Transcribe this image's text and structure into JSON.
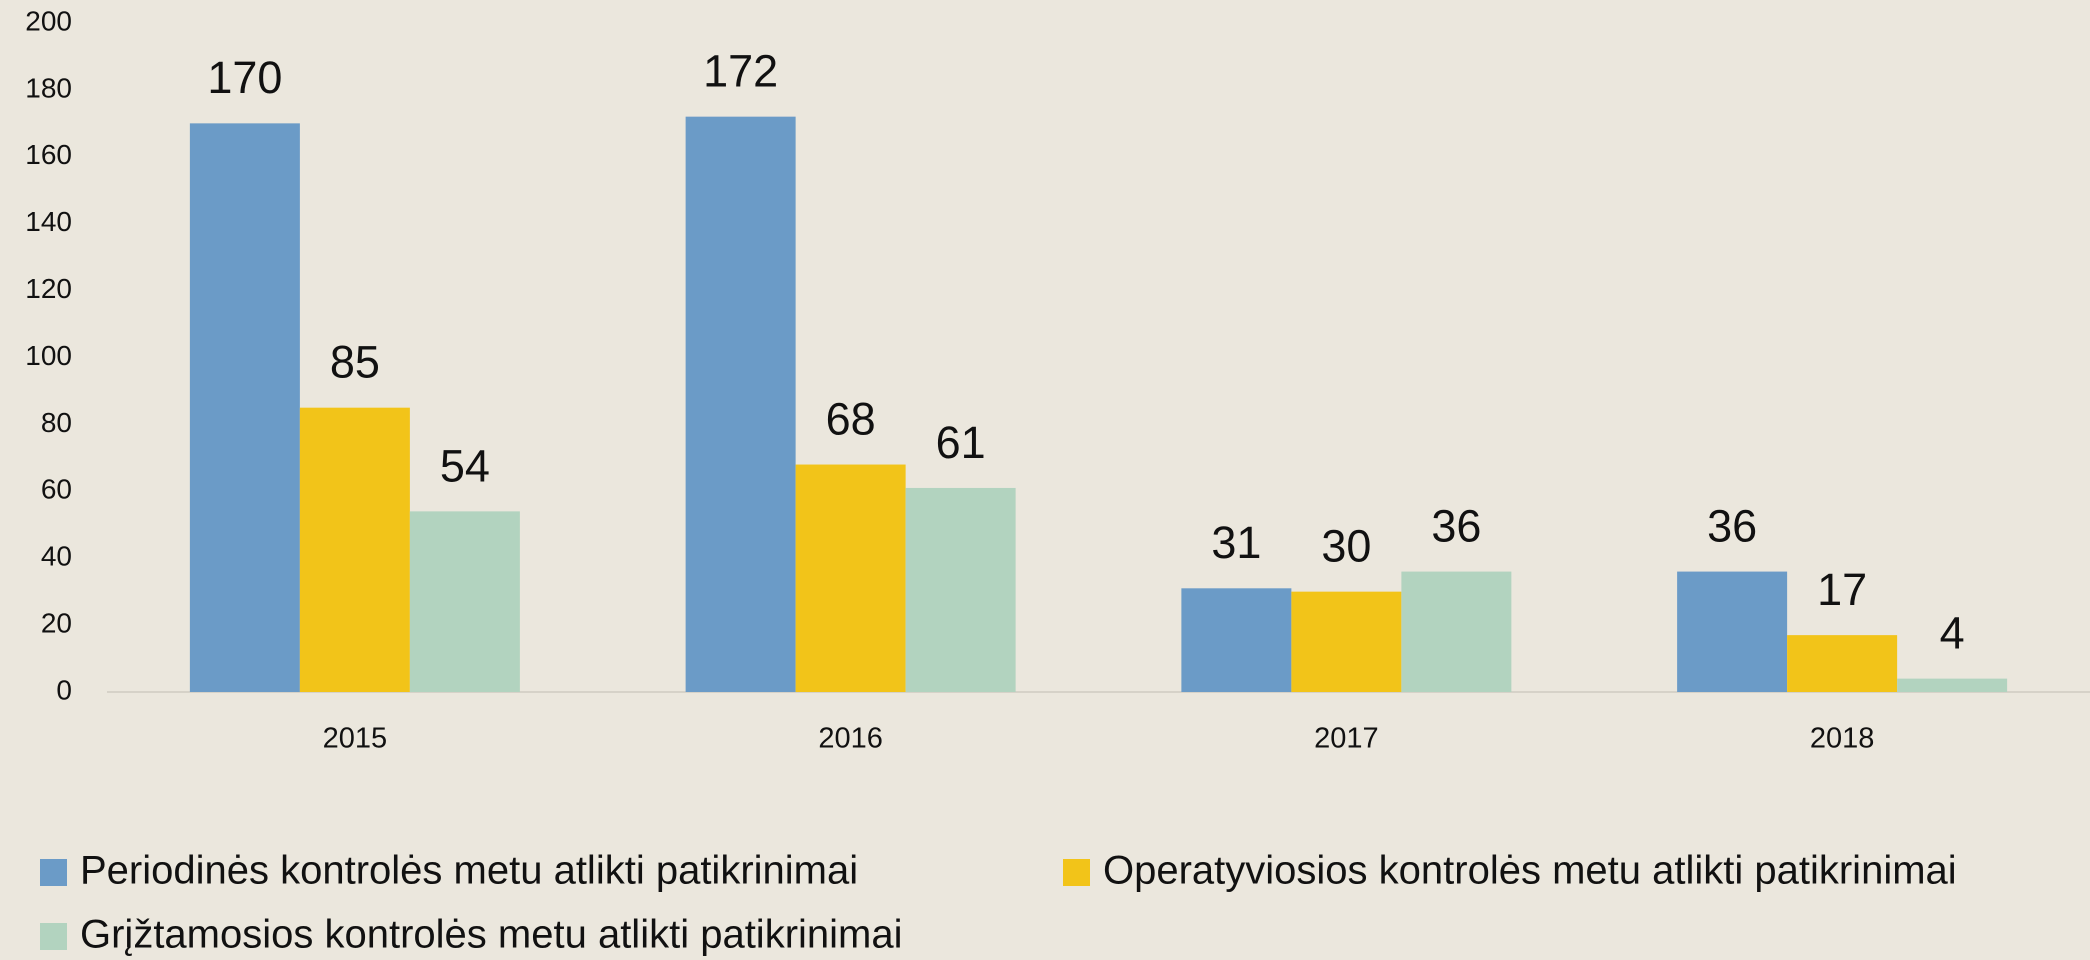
{
  "chart_data": {
    "type": "bar",
    "categories": [
      "2015",
      "2016",
      "2017",
      "2018"
    ],
    "series": [
      {
        "name": "Periodinės kontrolės metu atlikti patikrinimai",
        "color": "#6b9bc7",
        "values": [
          170,
          172,
          31,
          36
        ]
      },
      {
        "name": "Operatyviosios kontrolės metu atlikti patikrinimai",
        "color": "#f2c419",
        "values": [
          85,
          68,
          30,
          17
        ]
      },
      {
        "name": "Grįžtamosios kontrolės metu atlikti patikrinimai",
        "color": "#b2d3bf",
        "values": [
          54,
          61,
          36,
          4
        ]
      }
    ],
    "ylim": [
      0,
      200
    ],
    "yticks": [
      0,
      20,
      40,
      60,
      80,
      100,
      120,
      140,
      160,
      180,
      200
    ],
    "grid": false,
    "legend": "bottom"
  }
}
